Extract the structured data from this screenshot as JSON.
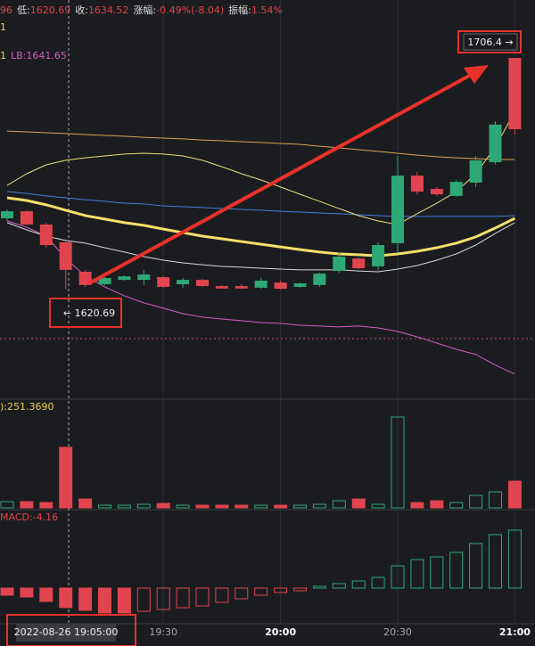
{
  "chart_data": {
    "type": "candlestick",
    "info_bar": [
      {
        "label": "96",
        "value": ""
      },
      {
        "label": "低:",
        "value": "1620.69"
      },
      {
        "label": "收:",
        "value": "1634.52"
      },
      {
        "label": "涨幅:",
        "value": "-0.49%(-8.04)"
      },
      {
        "label": "振幅:",
        "value": "1.54%"
      }
    ],
    "ma_label": "1",
    "lb_prefix": "1",
    "lb_label": "LB:1641.65",
    "categories": [
      null,
      null,
      null,
      null,
      null,
      null,
      null,
      null,
      "19:30",
      null,
      null,
      null,
      null,
      null,
      "20:00",
      null,
      null,
      null,
      null,
      null,
      "20:30",
      null,
      null,
      null,
      null,
      null,
      "21:00"
    ],
    "open": [
      1647.0,
      1649.6,
      1644.7,
      1638.1,
      1627.2,
      1622.6,
      1624.2,
      1624.2,
      1625.2,
      1622.6,
      1624.2,
      1621.9,
      1621.9,
      1621.3,
      1623.2,
      1621.6,
      1622.3,
      1627.5,
      1632.1,
      1629.2,
      1637.8,
      1662.8,
      1657.9,
      1655.3,
      1660.2,
      1667.8,
      1706.4
    ],
    "high": [
      1650.3,
      1649.9,
      1645.3,
      1638.8,
      1627.9,
      1625.2,
      1625.9,
      1627.8,
      1625.6,
      1624.9,
      1624.5,
      1622.2,
      1622.6,
      1624.9,
      1623.9,
      1623.2,
      1626.9,
      1634.4,
      1632.4,
      1638.1,
      1670.1,
      1664.2,
      1658.5,
      1661.2,
      1670.1,
      1683.0,
      1706.4
    ],
    "low": [
      1646.0,
      1644.5,
      1636.1,
      1620.69,
      1621.5,
      1622.2,
      1623.9,
      1622.2,
      1621.3,
      1621.3,
      1621.6,
      1620.9,
      1620.8,
      1620.9,
      1620.7,
      1621.3,
      1621.6,
      1626.8,
      1628.2,
      1627.8,
      1634.4,
      1655.9,
      1655.3,
      1654.9,
      1658.6,
      1667.0,
      1678.0
    ],
    "close": [
      1649.6,
      1644.7,
      1637.1,
      1627.9,
      1622.3,
      1624.9,
      1625.5,
      1626.2,
      1621.6,
      1624.2,
      1621.9,
      1621.0,
      1621.0,
      1623.9,
      1620.9,
      1622.9,
      1626.5,
      1632.8,
      1628.5,
      1637.1,
      1662.8,
      1656.9,
      1655.9,
      1660.5,
      1668.5,
      1681.7,
      1680.0
    ],
    "up_color": "#2fa877",
    "down_color": "#e0454f",
    "ylim": [
      1581.0,
      1727.85
    ],
    "lines": [
      {
        "color": "#d6a25a",
        "width": 1,
        "values": [
          1679.3,
          1679.0,
          1678.7,
          1678.4,
          1678.0,
          1677.7,
          1677.4,
          1677.0,
          1676.7,
          1676.4,
          1676.0,
          1675.7,
          1675.4,
          1675.1,
          1674.7,
          1674.4,
          1673.7,
          1673.1,
          1672.4,
          1671.8,
          1671.1,
          1670.4,
          1669.8,
          1669.4,
          1669.1,
          1668.8,
          1668.8
        ]
      },
      {
        "color": "#4a7fd8",
        "width": 1,
        "values": [
          1656.9,
          1656.2,
          1655.3,
          1654.6,
          1653.9,
          1653.3,
          1652.6,
          1652.3,
          1651.6,
          1651.3,
          1651.0,
          1650.6,
          1650.3,
          1650.0,
          1649.6,
          1649.3,
          1649.0,
          1648.7,
          1648.3,
          1648.0,
          1647.7,
          1647.7,
          1647.7,
          1647.7,
          1647.7,
          1647.7,
          1648.0
        ]
      },
      {
        "color": "#e8e07a",
        "width": 1,
        "values": [
          1659.2,
          1663.5,
          1666.8,
          1668.5,
          1669.4,
          1670.1,
          1670.8,
          1671.1,
          1670.8,
          1670.1,
          1668.5,
          1666.1,
          1663.5,
          1661.2,
          1658.6,
          1655.9,
          1653.3,
          1650.6,
          1648.0,
          1646.0,
          1644.7,
          1648.7,
          1652.6,
          1656.9,
          1663.5,
          1673.4,
          1686.6
        ]
      },
      {
        "color": "#d8d8d8",
        "width": 1,
        "values": [
          1645.4,
          1642.7,
          1640.4,
          1638.8,
          1637.8,
          1636.1,
          1634.5,
          1632.8,
          1631.5,
          1630.5,
          1629.8,
          1629.2,
          1628.9,
          1628.5,
          1628.2,
          1627.9,
          1627.9,
          1627.9,
          1627.5,
          1627.2,
          1628.2,
          1629.5,
          1631.5,
          1633.8,
          1637.1,
          1641.4,
          1645.4
        ]
      },
      {
        "color": "#d35fc0",
        "width": 1,
        "values": [
          1646.0,
          1643.7,
          1640.4,
          1632.2,
          1625.6,
          1621.6,
          1618.3,
          1615.7,
          1613.7,
          1611.7,
          1610.4,
          1609.7,
          1609.1,
          1608.4,
          1608.1,
          1607.4,
          1607.1,
          1606.8,
          1607.1,
          1606.4,
          1605.1,
          1603.1,
          1600.8,
          1598.5,
          1596.6,
          1592.6,
          1589.3
        ]
      },
      {
        "color": "#f2e06a",
        "width": 3,
        "values": [
          1654.6,
          1653.6,
          1652.0,
          1650.0,
          1648.0,
          1646.7,
          1645.4,
          1644.4,
          1643.0,
          1641.7,
          1640.4,
          1639.4,
          1638.4,
          1637.4,
          1636.4,
          1635.4,
          1634.5,
          1633.8,
          1633.5,
          1633.1,
          1633.8,
          1634.8,
          1636.1,
          1637.8,
          1640.1,
          1643.4,
          1647.0
        ]
      }
    ],
    "annotations": [
      "1706.4 →",
      "← 1620.69"
    ],
    "crosshair_time": "2022-08-26 19:05:00",
    "volume": {
      "label": "):251.3690",
      "ylim": [
        0,
        120
      ],
      "values": [
        7,
        7,
        6,
        68,
        10,
        3,
        3,
        4,
        5,
        3,
        3,
        3,
        3,
        3,
        3,
        3,
        4,
        8,
        10,
        4,
        102,
        6,
        8,
        6,
        14,
        18,
        30
      ]
    },
    "macd": {
      "label": "MACD:-4.16",
      "ylim": [
        -7.6,
        16.15
      ],
      "values": [
        -1.52,
        -1.9,
        -2.85,
        -4.16,
        -4.75,
        -5.32,
        -5.32,
        -4.94,
        -4.56,
        -4.18,
        -3.8,
        -3.04,
        -2.28,
        -1.52,
        -0.95,
        -0.57,
        0.38,
        0.95,
        1.52,
        2.28,
        4.75,
        6.08,
        6.65,
        7.6,
        9.5,
        11.4,
        12.35
      ]
    }
  }
}
